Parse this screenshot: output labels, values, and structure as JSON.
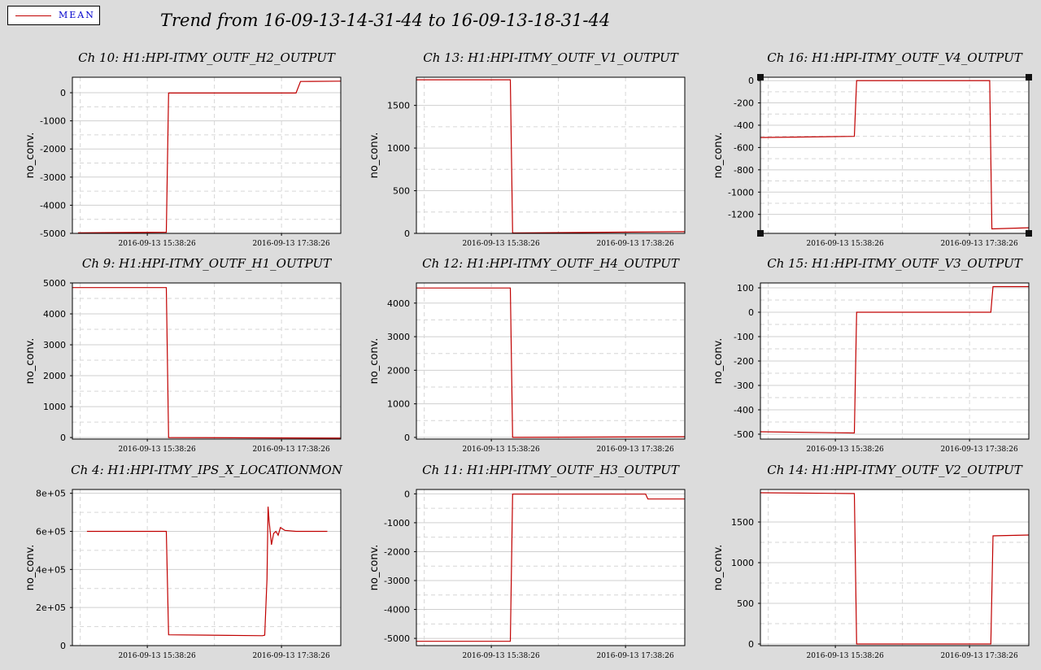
{
  "legend": {
    "label": "MEAN",
    "color": "#c00000"
  },
  "title": "Trend from 16-09-13-14-31-44 to 16-09-13-18-31-44",
  "chart_data": [
    {
      "type": "line",
      "title": "Ch 10: H1:HPI-ITMY_OUTF_H2_OUTPUT",
      "ylabel": "no_conv.",
      "xtick_labels": [
        "2016-09-13 15:38:26",
        "2016-09-13 17:38:26"
      ],
      "xtick_positions": [
        67,
        187
      ],
      "xlim": [
        0,
        240
      ],
      "ylim": [
        -5000,
        550
      ],
      "yticks": [
        -5000,
        -4000,
        -3000,
        -2000,
        -1000,
        0
      ],
      "ytick_labels": [
        "-5000",
        "-4000",
        "-3000",
        "-2000",
        "-1000",
        "0"
      ],
      "series": [
        {
          "x": [
            5,
            84,
            86,
            200,
            204,
            240
          ],
          "y": [
            -4980,
            -4960,
            -10,
            -10,
            400,
            410
          ]
        }
      ]
    },
    {
      "type": "line",
      "title": "Ch 13: H1:HPI-ITMY_OUTF_V1_OUTPUT",
      "ylabel": "no_conv.",
      "xtick_labels": [
        "2016-09-13 15:38:26",
        "2016-09-13 17:38:26"
      ],
      "xtick_positions": [
        67,
        187
      ],
      "xlim": [
        0,
        240
      ],
      "ylim": [
        0,
        1830
      ],
      "yticks": [
        0,
        500,
        1000,
        1500
      ],
      "ytick_labels": [
        "0",
        "500",
        "1000",
        "1500"
      ],
      "series": [
        {
          "x": [
            0,
            84,
            86,
            240
          ],
          "y": [
            1800,
            1800,
            5,
            20
          ]
        }
      ]
    },
    {
      "type": "line",
      "title": "Ch 16: H1:HPI-ITMY_OUTF_V4_OUTPUT",
      "ylabel": "no_conv.",
      "xtick_labels": [
        "2016-09-13 15:38:26",
        "2016-09-13 17:38:26"
      ],
      "xtick_positions": [
        67,
        187
      ],
      "xlim": [
        0,
        240
      ],
      "ylim": [
        -1370,
        30
      ],
      "yticks": [
        -1200,
        -1000,
        -800,
        -600,
        -400,
        -200,
        0
      ],
      "ytick_labels": [
        "-1200",
        "-1000",
        "-800",
        "-600",
        "-400",
        "-200",
        "0"
      ],
      "series": [
        {
          "x": [
            0,
            84,
            86,
            205,
            207,
            240
          ],
          "y": [
            -510,
            -500,
            0,
            0,
            -1330,
            -1320
          ]
        }
      ]
    },
    {
      "type": "line",
      "title": "Ch 9: H1:HPI-ITMY_OUTF_H1_OUTPUT",
      "ylabel": "no_conv.",
      "xtick_labels": [
        "2016-09-13 15:38:26",
        "2016-09-13 17:38:26"
      ],
      "xtick_positions": [
        67,
        187
      ],
      "xlim": [
        0,
        240
      ],
      "ylim": [
        -50,
        5000
      ],
      "yticks": [
        0,
        1000,
        2000,
        3000,
        4000,
        5000
      ],
      "ytick_labels": [
        "0",
        "1000",
        "2000",
        "3000",
        "4000",
        "5000"
      ],
      "series": [
        {
          "x": [
            0,
            84,
            86,
            240
          ],
          "y": [
            4850,
            4850,
            0,
            -20
          ]
        }
      ]
    },
    {
      "type": "line",
      "title": "Ch 12: H1:HPI-ITMY_OUTF_H4_OUTPUT",
      "ylabel": "no_conv.",
      "xtick_labels": [
        "2016-09-13 15:38:26",
        "2016-09-13 17:38:26"
      ],
      "xtick_positions": [
        67,
        187
      ],
      "xlim": [
        0,
        240
      ],
      "ylim": [
        -50,
        4600
      ],
      "yticks": [
        0,
        1000,
        2000,
        3000,
        4000
      ],
      "ytick_labels": [
        "0",
        "1000",
        "2000",
        "3000",
        "4000"
      ],
      "series": [
        {
          "x": [
            0,
            84,
            86,
            240
          ],
          "y": [
            4450,
            4450,
            0,
            20
          ]
        }
      ]
    },
    {
      "type": "line",
      "title": "Ch 15: H1:HPI-ITMY_OUTF_V3_OUTPUT",
      "ylabel": "no_conv.",
      "xtick_labels": [
        "2016-09-13 15:38:26",
        "2016-09-13 17:38:26"
      ],
      "xtick_positions": [
        67,
        187
      ],
      "xlim": [
        0,
        240
      ],
      "ylim": [
        -520,
        120
      ],
      "yticks": [
        -500,
        -400,
        -300,
        -200,
        -100,
        0,
        100
      ],
      "ytick_labels": [
        "-500",
        "-400",
        "-300",
        "-200",
        "-100",
        "0",
        "100"
      ],
      "series": [
        {
          "x": [
            0,
            84,
            86,
            206,
            208,
            240
          ],
          "y": [
            -490,
            -495,
            0,
            0,
            105,
            105
          ]
        }
      ]
    },
    {
      "type": "line",
      "title": "Ch 4: H1:HPI-ITMY_IPS_X_LOCATIONMON",
      "ylabel": "no_conv.",
      "xtick_labels": [
        "2016-09-13 15:38:26",
        "2016-09-13 17:38:26"
      ],
      "xtick_positions": [
        67,
        187
      ],
      "xlim": [
        0,
        240
      ],
      "ylim": [
        0,
        820000
      ],
      "yticks": [
        0,
        200000,
        400000,
        600000,
        800000
      ],
      "ytick_labels": [
        "0",
        "2e+05",
        "4e+05",
        "6e+05",
        "8e+05"
      ],
      "series": [
        {
          "x": [
            13,
            84,
            86,
            170,
            172,
            174,
            175,
            176,
            178,
            180,
            182,
            184,
            186,
            190,
            200,
            228
          ],
          "y": [
            600000,
            600000,
            57000,
            52000,
            55000,
            350000,
            730000,
            650000,
            530000,
            590000,
            600000,
            580000,
            620000,
            605000,
            600000,
            600000
          ]
        }
      ]
    },
    {
      "type": "line",
      "title": "Ch 11: H1:HPI-ITMY_OUTF_H3_OUTPUT",
      "ylabel": "no_conv.",
      "xtick_labels": [
        "2016-09-13 15:38:26",
        "2016-09-13 17:38:26"
      ],
      "xtick_positions": [
        67,
        187
      ],
      "xlim": [
        0,
        240
      ],
      "ylim": [
        -5250,
        150
      ],
      "yticks": [
        -5000,
        -4000,
        -3000,
        -2000,
        -1000,
        0
      ],
      "ytick_labels": [
        "-5000",
        "-4000",
        "-3000",
        "-2000",
        "-1000",
        "0"
      ],
      "series": [
        {
          "x": [
            0,
            84,
            86,
            205,
            207,
            240
          ],
          "y": [
            -5100,
            -5100,
            -10,
            -10,
            -180,
            -180
          ]
        }
      ]
    },
    {
      "type": "line",
      "title": "Ch 14: H1:HPI-ITMY_OUTF_V2_OUTPUT",
      "ylabel": "no_conv.",
      "xtick_labels": [
        "2016-09-13 15:38:26",
        "2016-09-13 17:38:26"
      ],
      "xtick_positions": [
        67,
        187
      ],
      "xlim": [
        0,
        240
      ],
      "ylim": [
        -20,
        1900
      ],
      "yticks": [
        0,
        500,
        1000,
        1500
      ],
      "ytick_labels": [
        "0",
        "500",
        "1000",
        "1500"
      ],
      "series": [
        {
          "x": [
            0,
            84,
            86,
            206,
            208,
            240
          ],
          "y": [
            1860,
            1850,
            0,
            0,
            1330,
            1340
          ]
        }
      ]
    }
  ]
}
